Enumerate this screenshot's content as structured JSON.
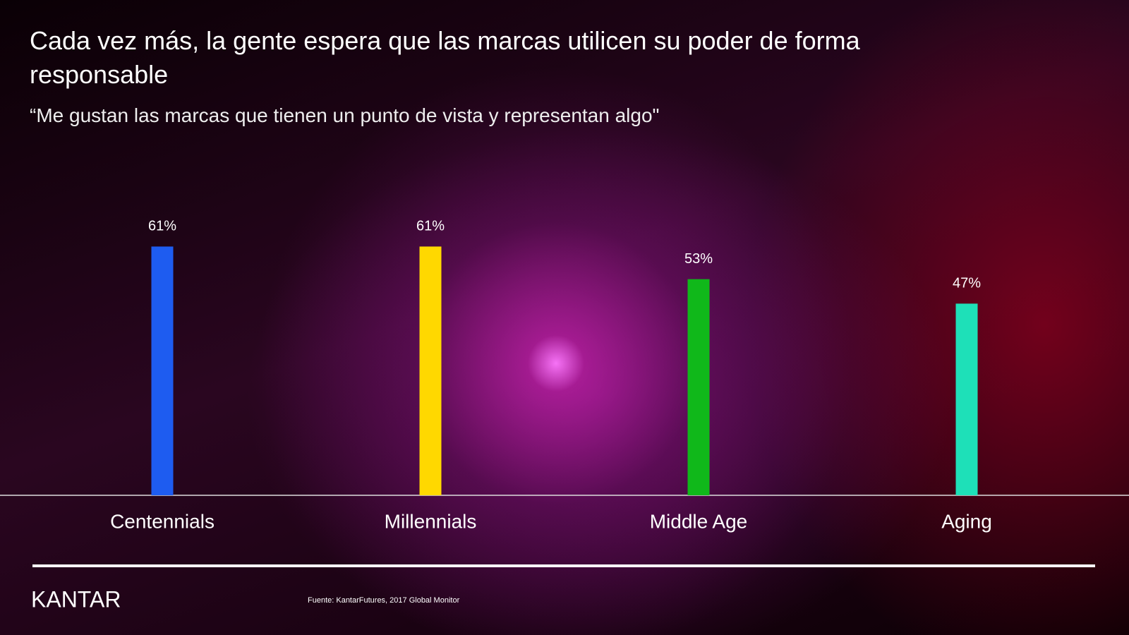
{
  "chart_data": {
    "type": "bar",
    "title": "Cada vez más, la gente espera que las marcas utilicen su poder de forma responsable",
    "subtitle": "“Me gustan las marcas que tienen un punto de vista y representan algo\"",
    "categories": [
      "Centennials",
      "Millennials",
      "Middle Age",
      "Aging"
    ],
    "values": [
      61,
      61,
      53,
      47
    ],
    "value_labels": [
      "61%",
      "61%",
      "53%",
      "47%"
    ],
    "colors": [
      "#1e5cf0",
      "#ffd800",
      "#10b81a",
      "#1ee0b8"
    ],
    "logo": "KANTAR",
    "source": "Fuente: KantarFutures, 2017 Global Monitor"
  }
}
